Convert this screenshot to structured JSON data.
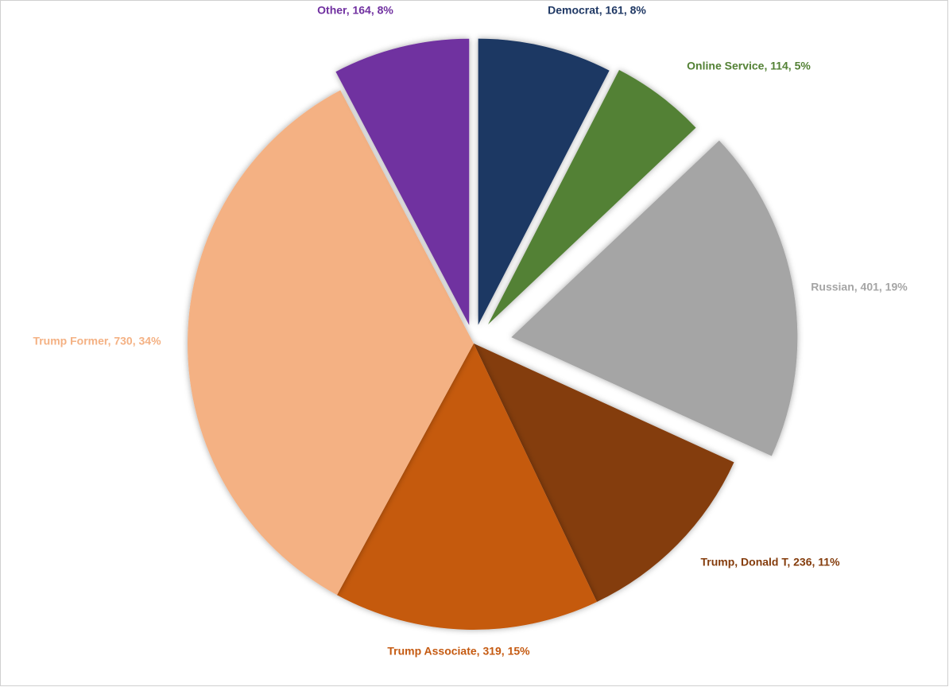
{
  "chart_data": {
    "type": "pie",
    "categories": [
      "Democrat",
      "Online Service",
      "Russian",
      "Trump, Donald T",
      "Trump Associate",
      "Trump Former",
      "Other"
    ],
    "values": [
      161,
      114,
      401,
      236,
      319,
      730,
      164
    ],
    "value_labels": [
      "Democrat, 161, 8%",
      "Online Service, 114, 5%",
      "Russian, 401, 19%",
      "Trump, Donald T, 236, 11%",
      "Trump Associate, 319, 15%",
      "Trump Former, 730, 34%",
      "Other, 164, 8%"
    ],
    "colors": [
      "#1f3864",
      "#538135",
      "#a5a5a5",
      "#843c0c",
      "#c55a11",
      "#f4b183",
      "#7030a0"
    ]
  }
}
